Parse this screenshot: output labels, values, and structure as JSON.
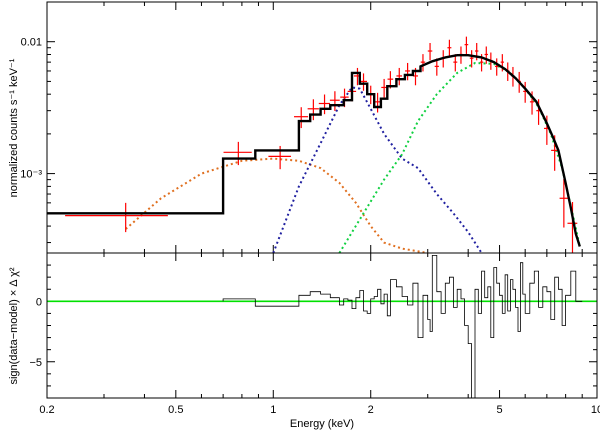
{
  "chart_data": [
    {
      "type": "line",
      "panel": "spectrum",
      "xscale": "log",
      "yscale": "log",
      "xlim": [
        0.2,
        10
      ],
      "ylim": [
        0.00025,
        0.02
      ],
      "ylabel": "normalized counts s⁻¹ keV⁻¹",
      "yticks": [
        {
          "value": 0.01,
          "label": "0.01"
        },
        {
          "value": 0.001,
          "label": "10⁻³"
        }
      ],
      "data_points": {
        "name": "data",
        "color": "#ff0000",
        "x": [
          0.35,
          0.78,
          1.05,
          1.22,
          1.33,
          1.44,
          1.55,
          1.66,
          1.75,
          1.82,
          1.9,
          2.0,
          2.1,
          2.2,
          2.3,
          2.45,
          2.6,
          2.75,
          2.9,
          3.05,
          3.2,
          3.35,
          3.5,
          3.65,
          3.8,
          3.95,
          4.1,
          4.25,
          4.4,
          4.55,
          4.7,
          4.9,
          5.1,
          5.3,
          5.5,
          5.75,
          6.0,
          6.3,
          6.6,
          7.0,
          7.4,
          7.9,
          8.4
        ],
        "y": [
          0.00048,
          0.00145,
          0.00135,
          0.0027,
          0.0031,
          0.0034,
          0.0036,
          0.0038,
          0.0042,
          0.0055,
          0.005,
          0.004,
          0.0035,
          0.0045,
          0.0052,
          0.0055,
          0.006,
          0.0055,
          0.007,
          0.0085,
          0.0065,
          0.0075,
          0.009,
          0.007,
          0.008,
          0.0095,
          0.0075,
          0.0085,
          0.007,
          0.008,
          0.0072,
          0.0065,
          0.007,
          0.006,
          0.0055,
          0.005,
          0.0042,
          0.0035,
          0.003,
          0.0022,
          0.0015,
          0.00065,
          0.00042
        ],
        "xerr_frac": [
          0.35,
          0.1,
          0.08,
          0.05,
          0.04,
          0.04,
          0.035,
          0.03,
          0.03,
          0.025,
          0.025,
          0.025,
          0.022,
          0.02,
          0.02,
          0.02,
          0.018,
          0.018,
          0.016,
          0.016,
          0.015,
          0.015,
          0.014,
          0.014,
          0.013,
          0.013,
          0.013,
          0.012,
          0.012,
          0.012,
          0.012,
          0.012,
          0.012,
          0.012,
          0.012,
          0.012,
          0.014,
          0.015,
          0.016,
          0.02,
          0.025,
          0.03,
          0.035
        ],
        "yerr_frac": [
          0.25,
          0.2,
          0.2,
          0.18,
          0.18,
          0.17,
          0.17,
          0.16,
          0.16,
          0.15,
          0.15,
          0.16,
          0.17,
          0.16,
          0.15,
          0.15,
          0.15,
          0.15,
          0.15,
          0.15,
          0.15,
          0.15,
          0.15,
          0.15,
          0.15,
          0.15,
          0.15,
          0.15,
          0.15,
          0.15,
          0.15,
          0.15,
          0.15,
          0.16,
          0.17,
          0.18,
          0.18,
          0.2,
          0.22,
          0.25,
          0.3,
          0.4,
          0.45
        ]
      },
      "model": {
        "name": "total model",
        "color": "#000000",
        "x_edges": [
          0.2,
          0.7,
          0.88,
          1.2,
          1.3,
          1.4,
          1.5,
          1.65,
          1.75,
          1.85,
          1.95,
          2.05,
          2.15,
          2.25,
          2.4,
          2.55,
          2.7,
          2.85
        ],
        "y": [
          0.0005,
          0.0013,
          0.0015,
          0.0025,
          0.0028,
          0.0031,
          0.0033,
          0.0036,
          0.0058,
          0.0048,
          0.004,
          0.0032,
          0.0037,
          0.0046,
          0.0052,
          0.0056,
          0.006,
          0.0065
        ],
        "smooth_x": [
          2.85,
          3.1,
          3.4,
          3.7,
          4.0,
          4.4,
          4.8,
          5.2,
          5.6,
          6.0,
          6.5,
          7.0,
          7.3,
          7.6,
          8.0,
          8.3,
          8.6,
          8.85
        ],
        "smooth_y": [
          0.0065,
          0.0071,
          0.0076,
          0.0079,
          0.0079,
          0.0076,
          0.007,
          0.0062,
          0.0053,
          0.0044,
          0.0035,
          0.0024,
          0.0019,
          0.0015,
          0.00085,
          0.00055,
          0.00035,
          0.00028
        ]
      },
      "components": [
        {
          "name": "soft component",
          "color": "#e07020",
          "x": [
            0.35,
            0.45,
            0.6,
            0.8,
            1.0,
            1.2,
            1.4,
            1.6,
            1.8,
            2.0,
            2.2,
            2.5,
            3.0
          ],
          "y": [
            0.00038,
            0.00065,
            0.001,
            0.00125,
            0.0013,
            0.00125,
            0.0011,
            0.00085,
            0.0006,
            0.0004,
            0.0003,
            0.00027,
            0.00025
          ]
        },
        {
          "name": "line component",
          "color": "#2020a0",
          "x": [
            1.0,
            1.2,
            1.4,
            1.6,
            1.75,
            1.85,
            2.0,
            2.2,
            2.5,
            2.8,
            3.2,
            3.6,
            4.0,
            4.4
          ],
          "y": [
            0.00025,
            0.0008,
            0.0017,
            0.0033,
            0.0045,
            0.0044,
            0.0031,
            0.002,
            0.0013,
            0.0011,
            0.0007,
            0.0005,
            0.00036,
            0.00025
          ]
        },
        {
          "name": "hard component",
          "color": "#10d040",
          "x": [
            1.6,
            1.9,
            2.2,
            2.5,
            2.8,
            3.2,
            3.7,
            4.2,
            4.8,
            5.4,
            6.0,
            6.6,
            7.2,
            7.8,
            8.4,
            8.85
          ],
          "y": [
            0.00025,
            0.0005,
            0.0009,
            0.0014,
            0.0025,
            0.004,
            0.0058,
            0.0069,
            0.0068,
            0.0058,
            0.0044,
            0.0032,
            0.002,
            0.0011,
            0.0005,
            0.00028
          ]
        }
      ]
    },
    {
      "type": "line",
      "panel": "residuals",
      "xscale": "log",
      "xlim": [
        0.2,
        10
      ],
      "ylim": [
        -8,
        4
      ],
      "xlabel": "Energy (keV)",
      "ylabel": "sign(data−model) × Δ χ²",
      "xticks": [
        {
          "value": 0.2,
          "label": "0.2"
        },
        {
          "value": 0.5,
          "label": "0.5"
        },
        {
          "value": 1,
          "label": "1"
        },
        {
          "value": 2,
          "label": "2"
        },
        {
          "value": 5,
          "label": "5"
        },
        {
          "value": 10,
          "label": "10"
        }
      ],
      "yticks": [
        {
          "value": 0,
          "label": "0"
        },
        {
          "value": -5,
          "label": "−5"
        }
      ],
      "zero_line_color": "#00e000",
      "residual_x_edges": [
        0.7,
        0.88,
        1.2,
        1.3,
        1.4,
        1.5,
        1.6,
        1.65,
        1.7,
        1.75,
        1.8,
        1.85,
        1.9,
        1.95,
        2.0,
        2.05,
        2.1,
        2.15,
        2.2,
        2.25,
        2.3,
        2.4,
        2.5,
        2.6,
        2.7,
        2.8,
        2.9,
        3.0,
        3.05,
        3.1,
        3.2,
        3.3,
        3.4,
        3.5,
        3.6,
        3.7,
        3.8,
        3.9,
        4.0,
        4.1,
        4.2,
        4.3,
        4.4,
        4.5,
        4.6,
        4.7,
        4.8,
        4.9,
        5.0,
        5.1,
        5.2,
        5.3,
        5.4,
        5.5,
        5.6,
        5.7,
        5.8,
        5.9,
        6.0,
        6.2,
        6.4,
        6.6,
        6.8,
        7.0,
        7.2,
        7.4,
        7.6,
        7.8,
        8.0,
        8.3,
        8.6,
        9.0
      ],
      "residual_values": [
        0.2,
        -0.4,
        0.5,
        0.8,
        0.6,
        0.3,
        -0.3,
        0.2,
        0.1,
        -0.6,
        0.3,
        0.9,
        -0.8,
        -1.0,
        0.2,
        0.4,
        1.0,
        -0.2,
        0.6,
        -1.2,
        1.8,
        1.2,
        0.4,
        -0.3,
        1.5,
        -3.0,
        0.5,
        -1.5,
        -2.5,
        3.8,
        0.8,
        -1.0,
        1.5,
        2.0,
        -0.5,
        1.0,
        0.2,
        -2.0,
        -3.5,
        -8.0,
        1.0,
        -1.0,
        2.5,
        0.3,
        1.2,
        -3.0,
        2.8,
        1.5,
        0.5,
        -1.0,
        2.2,
        -0.8,
        1.8,
        1.0,
        -0.5,
        -2.5,
        3.2,
        0.6,
        -1.0,
        1.5,
        2.5,
        -0.5,
        1.2,
        0.8,
        -1.5,
        2.0,
        1.0,
        -2.0,
        0.5,
        2.5,
        0.0
      ]
    }
  ]
}
